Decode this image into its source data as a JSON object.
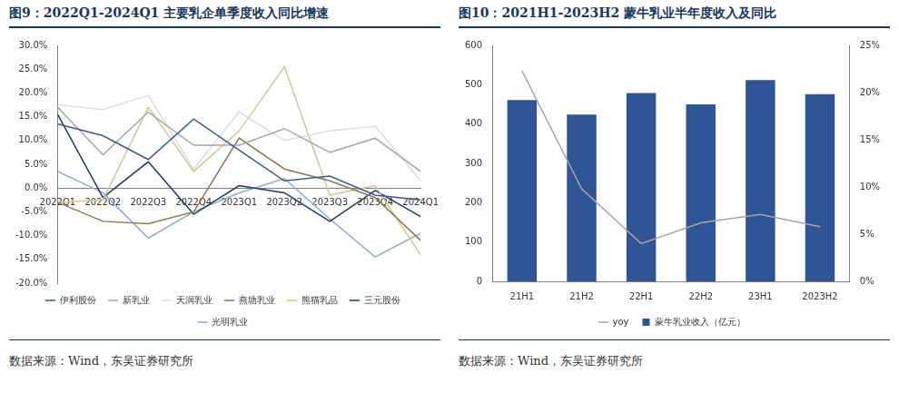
{
  "chart_data": [
    {
      "type": "line",
      "title": "图9：2022Q1-2024Q1 主要乳企单季度收入同比增速",
      "source": "数据来源：Wind，东吴证券研究所",
      "categories": [
        "2022Q1",
        "2022Q2",
        "2022Q3",
        "2022Q4",
        "2023Q1",
        "2023Q2",
        "2023Q3",
        "2023Q4",
        "2024Q1"
      ],
      "series": [
        {
          "name": "伊利股份",
          "color": "#3B5B8E",
          "values": [
            13.5,
            11,
            6,
            14.5,
            8,
            1.5,
            2.5,
            -1.5,
            -2.5
          ]
        },
        {
          "name": "新乳业",
          "color": "#A6A6A6",
          "values": [
            17,
            7,
            16,
            9,
            9,
            12.5,
            7.5,
            10.5,
            3.5
          ]
        },
        {
          "name": "天润乳业",
          "color": "#DCDCDC",
          "values": [
            17.5,
            16.5,
            19.5,
            4,
            16,
            10,
            12,
            13,
            1.5
          ]
        },
        {
          "name": "燕塘乳业",
          "color": "#8C7A4E",
          "values": [
            -3,
            -7,
            -7.5,
            -5,
            10.5,
            4,
            1.5,
            -2,
            -11
          ]
        },
        {
          "name": "熊猫乳品",
          "color": "#CFC695",
          "values": [
            -3,
            -2.5,
            17,
            3.5,
            12,
            25.5,
            -1.5,
            0.5,
            -14
          ]
        },
        {
          "name": "三元股份",
          "color": "#1F3A5F",
          "values": [
            15.5,
            -2,
            5.5,
            -5.5,
            0.5,
            -1,
            -7,
            -0.5,
            -6
          ]
        },
        {
          "name": "光明乳业",
          "color": "#8FAACB",
          "values": [
            3.5,
            -1,
            -10.5,
            -5,
            -1,
            2,
            -6.5,
            -14.5,
            -9.5
          ]
        }
      ],
      "ylim": [
        -20,
        30
      ],
      "yticks": [
        {
          "value": -20,
          "label": "-20.0%"
        },
        {
          "value": -15,
          "label": "-15.0%"
        },
        {
          "value": -10,
          "label": "-10.0%"
        },
        {
          "value": -5,
          "label": "-5.0%"
        },
        {
          "value": 0,
          "label": "0.0%"
        },
        {
          "value": 5,
          "label": "5.0%"
        },
        {
          "value": 10,
          "label": "10.0%"
        },
        {
          "value": 15,
          "label": "15.0%"
        },
        {
          "value": 20,
          "label": "20.0%"
        },
        {
          "value": 25,
          "label": "25.0%"
        },
        {
          "value": 30,
          "label": "30.0%"
        }
      ],
      "grid": false,
      "legend": "bottom"
    },
    {
      "type": "bar",
      "title": "图10：2021H1-2023H2 蒙牛乳业半年度收入及同比",
      "source": "数据来源：Wind，东吴证券研究所",
      "categories": [
        "21H1",
        "21H2",
        "22H1",
        "22H2",
        "23H1",
        "2023H2"
      ],
      "series": [
        {
          "name": "蒙牛乳业收入（亿元）",
          "type": "bar",
          "color": "#2F5597",
          "values": [
            461,
            424,
            479,
            450,
            512,
            476
          ]
        },
        {
          "name": "yoy",
          "type": "line",
          "color": "#A6A6A6",
          "axis": "y2",
          "values": [
            22.3,
            9.8,
            4.0,
            6.2,
            7.1,
            5.8
          ]
        }
      ],
      "ylim": [
        0,
        600
      ],
      "yticks": [
        0,
        100,
        200,
        300,
        400,
        500,
        600
      ],
      "y2lim": [
        0,
        25
      ],
      "y2ticks": [
        {
          "value": 0,
          "label": "0%"
        },
        {
          "value": 5,
          "label": "5%"
        },
        {
          "value": 10,
          "label": "10%"
        },
        {
          "value": 15,
          "label": "15%"
        },
        {
          "value": 20,
          "label": "20%"
        },
        {
          "value": 25,
          "label": "25%"
        }
      ],
      "grid": false,
      "legend": "bottom"
    }
  ]
}
